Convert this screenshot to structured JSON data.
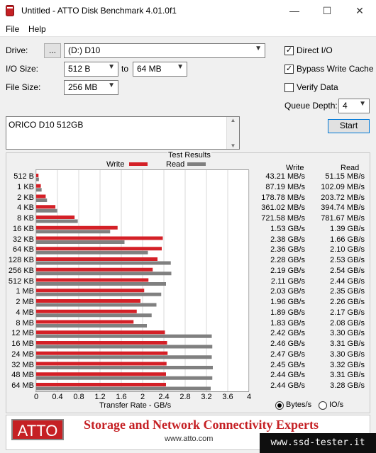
{
  "window": {
    "title": "Untitled - ATTO Disk Benchmark 4.01.0f1",
    "minimize": "—",
    "maximize": "☐",
    "close": "✕"
  },
  "menu": {
    "file": "File",
    "help": "Help"
  },
  "drive": {
    "label": "Drive:",
    "browse": "...",
    "value": "(D:) D10"
  },
  "io_size": {
    "label": "I/O Size:",
    "from": "512 B",
    "to_label": "to",
    "to": "64 MB"
  },
  "file_size": {
    "label": "File Size:",
    "value": "256 MB"
  },
  "options": {
    "direct_io": "Direct I/O",
    "bypass_write_cache": "Bypass Write Cache",
    "verify_data": "Verify Data",
    "direct_io_checked": true,
    "bypass_checked": true,
    "verify_checked": false
  },
  "queue_depth": {
    "label": "Queue Depth:",
    "value": "4"
  },
  "start_label": "Start",
  "description": "ORICO D10 512GB",
  "results": {
    "title": "Test Results",
    "legend_write": "Write",
    "legend_read": "Read",
    "col_write": "Write",
    "col_read": "Read",
    "xlabel": "Transfer Rate - GB/s",
    "units_bytes": "Bytes/s",
    "units_io": "IO/s",
    "write_color": "#d42027",
    "read_color": "#808080"
  },
  "chart_data": {
    "type": "bar",
    "xlim": [
      0,
      4
    ],
    "ticks": [
      "0",
      "0.4",
      "0.8",
      "1.2",
      "1.6",
      "2",
      "2.4",
      "2.8",
      "3.2",
      "3.6",
      "4"
    ],
    "categories": [
      "512 B",
      "1 KB",
      "2 KB",
      "4 KB",
      "8 KB",
      "16 KB",
      "32 KB",
      "64 KB",
      "128 KB",
      "256 KB",
      "512 KB",
      "1 MB",
      "2 MB",
      "4 MB",
      "8 MB",
      "12 MB",
      "16 MB",
      "24 MB",
      "32 MB",
      "48 MB",
      "64 MB"
    ],
    "series": [
      {
        "name": "Write",
        "values": [
          0.04321,
          0.08719,
          0.17878,
          0.36102,
          0.72158,
          1.53,
          2.38,
          2.36,
          2.28,
          2.19,
          2.11,
          2.03,
          1.96,
          1.89,
          1.83,
          2.42,
          2.46,
          2.47,
          2.45,
          2.44,
          2.44
        ]
      },
      {
        "name": "Read",
        "values": [
          0.05115,
          0.10209,
          0.20372,
          0.39474,
          0.78167,
          1.39,
          1.66,
          2.1,
          2.53,
          2.54,
          2.44,
          2.35,
          2.26,
          2.17,
          2.08,
          3.3,
          3.31,
          3.3,
          3.32,
          3.31,
          3.28
        ]
      }
    ],
    "write_labels": [
      "43.21 MB/s",
      "87.19 MB/s",
      "178.78 MB/s",
      "361.02 MB/s",
      "721.58 MB/s",
      "1.53 GB/s",
      "2.38 GB/s",
      "2.36 GB/s",
      "2.28 GB/s",
      "2.19 GB/s",
      "2.11 GB/s",
      "2.03 GB/s",
      "1.96 GB/s",
      "1.89 GB/s",
      "1.83 GB/s",
      "2.42 GB/s",
      "2.46 GB/s",
      "2.47 GB/s",
      "2.45 GB/s",
      "2.44 GB/s",
      "2.44 GB/s"
    ],
    "read_labels": [
      "51.15 MB/s",
      "102.09 MB/s",
      "203.72 MB/s",
      "394.74 MB/s",
      "781.67 MB/s",
      "1.39 GB/s",
      "1.66 GB/s",
      "2.10 GB/s",
      "2.53 GB/s",
      "2.54 GB/s",
      "2.44 GB/s",
      "2.35 GB/s",
      "2.26 GB/s",
      "2.17 GB/s",
      "2.08 GB/s",
      "3.30 GB/s",
      "3.31 GB/s",
      "3.30 GB/s",
      "3.32 GB/s",
      "3.31 GB/s",
      "3.28 GB/s"
    ]
  },
  "banner": {
    "logo": "ATTO",
    "slogan": "Storage and Network Connectivity Experts",
    "url": "www.atto.com"
  },
  "watermark": "www.ssd-tester.it"
}
